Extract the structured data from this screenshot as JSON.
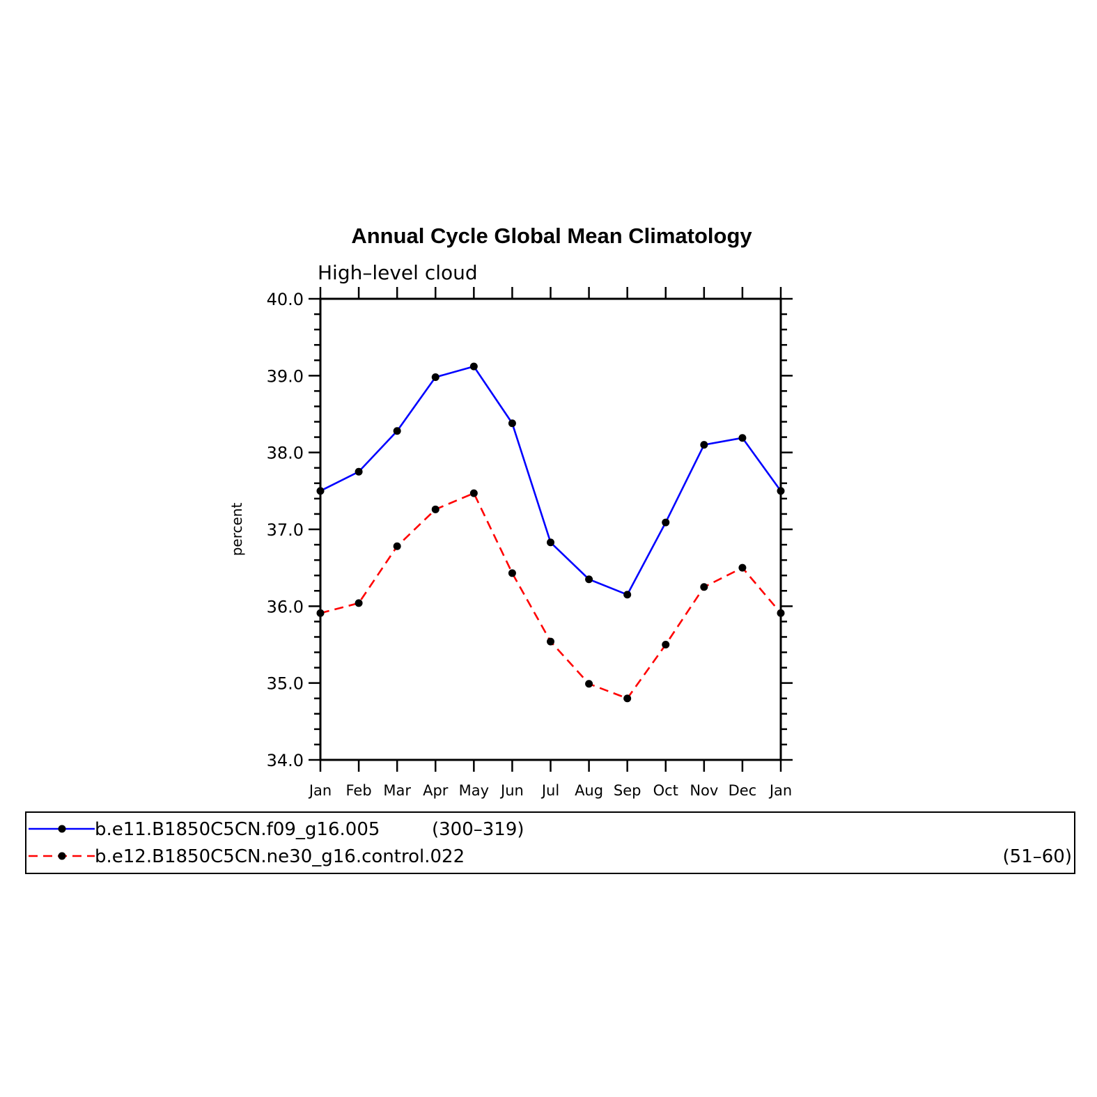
{
  "chart_data": {
    "type": "line",
    "title": "Annual Cycle Global Mean Climatology",
    "subtitle": "High–level cloud",
    "xlabel": "",
    "ylabel": "percent",
    "categories": [
      "Jan",
      "Feb",
      "Mar",
      "Apr",
      "May",
      "Jun",
      "Jul",
      "Aug",
      "Sep",
      "Oct",
      "Nov",
      "Dec",
      "Jan"
    ],
    "ylim": [
      34.0,
      40.0
    ],
    "yticks": [
      "34.0",
      "35.0",
      "36.0",
      "37.0",
      "38.0",
      "39.0",
      "40.0"
    ],
    "grid": false,
    "legend_position": "bottom",
    "series": [
      {
        "name": "b.e11.B1850C5CN.f09_g16.005",
        "years": "(300–319)",
        "color": "#0000ff",
        "dash": "solid",
        "values": [
          37.5,
          37.75,
          38.28,
          38.98,
          39.12,
          38.38,
          36.83,
          36.35,
          36.15,
          37.09,
          38.1,
          38.19,
          37.5
        ]
      },
      {
        "name": "b.e12.B1850C5CN.ne30_g16.control.022",
        "years": "(51–60)",
        "color": "#ff0000",
        "dash": "dashed",
        "values": [
          35.91,
          36.04,
          36.78,
          37.26,
          37.47,
          36.43,
          35.54,
          34.99,
          34.8,
          35.5,
          36.25,
          36.5,
          35.91
        ]
      }
    ]
  }
}
